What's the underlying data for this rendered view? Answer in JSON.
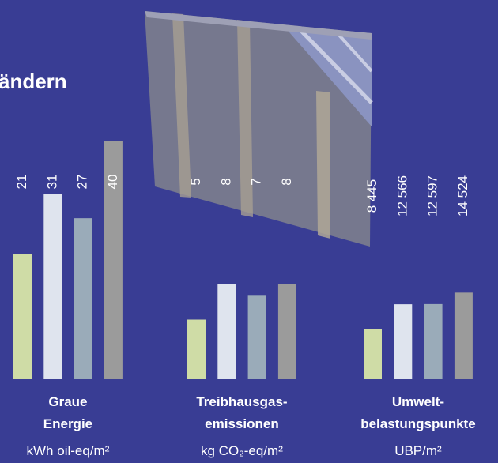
{
  "heading": "ändern",
  "chart_data": [
    {
      "type": "bar",
      "title": [
        "Graue",
        "Energie"
      ],
      "unit": "kWh oil-eq/m²",
      "values": [
        21,
        31,
        27,
        40
      ],
      "colors": [
        "#cfdca6",
        "#dfe4ee",
        "#9aabb9",
        "#9b9b9b"
      ],
      "ylim": [
        0,
        40
      ]
    },
    {
      "type": "bar",
      "title": [
        "Treibhausgas-",
        "emissionen"
      ],
      "unit": "kg CO₂-eq/m²",
      "values": [
        5,
        8,
        7,
        8
      ],
      "colors": [
        "#cfdca6",
        "#dfe4ee",
        "#9aabb9",
        "#9b9b9b"
      ],
      "ylim": [
        0,
        20
      ]
    },
    {
      "type": "bar",
      "title": [
        "Umwelt-",
        "belastungspunkte"
      ],
      "unit": "UBP/m²",
      "values": [
        8445,
        12566,
        12597,
        14524
      ],
      "value_labels": [
        "8 445",
        "12 566",
        "12 597",
        "14 524"
      ],
      "colors": [
        "#cfdca6",
        "#dfe4ee",
        "#9aabb9",
        "#9b9b9b"
      ],
      "ylim": [
        0,
        40000
      ]
    }
  ]
}
